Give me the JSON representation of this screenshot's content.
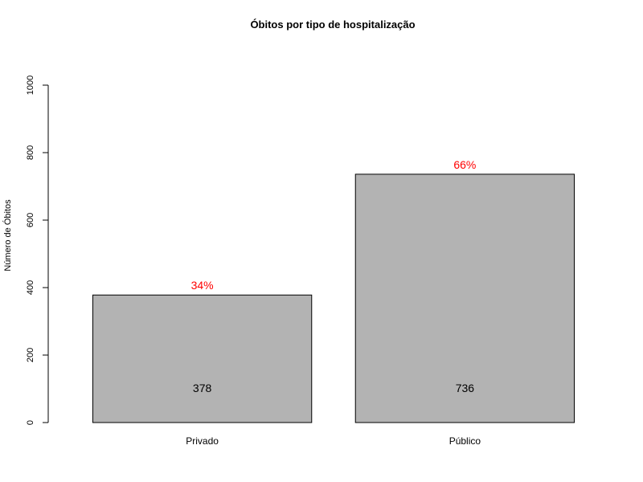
{
  "chart_data": {
    "type": "bar",
    "title": "Óbitos por tipo de hospitalização",
    "xlabel": "",
    "ylabel": "Número de Óbitos",
    "categories": [
      "Privado",
      "Público"
    ],
    "values": [
      378,
      736
    ],
    "value_labels": [
      "378",
      "736"
    ],
    "percent_labels": [
      "34%",
      "66%"
    ],
    "ylim": [
      0,
      1000
    ],
    "yticks": [
      0,
      200,
      400,
      600,
      800,
      1000
    ],
    "grid": false,
    "legend": "none",
    "bar_color": "#b3b3b3",
    "bar_border_color": "#000000",
    "percent_color": "#ff0000"
  }
}
